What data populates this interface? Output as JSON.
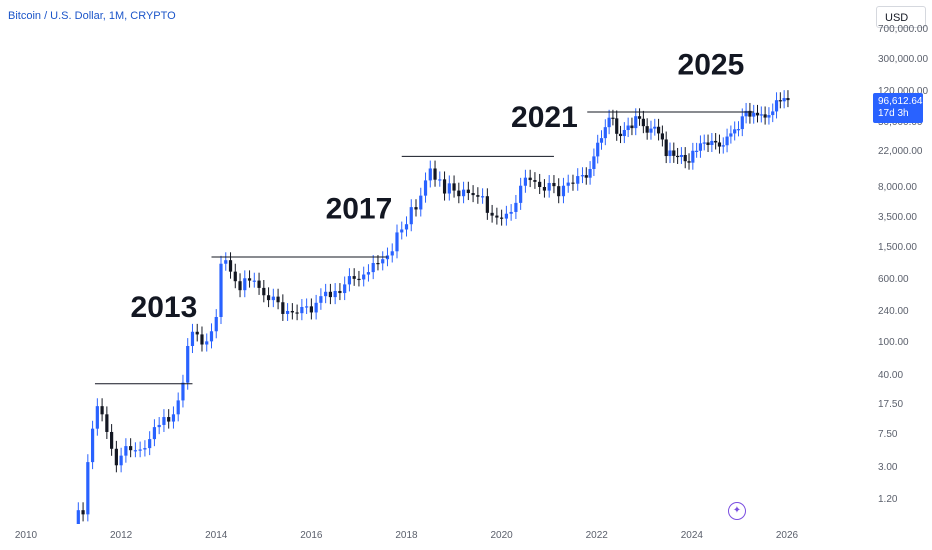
{
  "header": {
    "title": "Bitcoin / U.S. Dollar, 1M, CRYPTO"
  },
  "currency_selector": {
    "label": "USD"
  },
  "price_badge": {
    "price": "96,612.64",
    "countdown": "17d 3h"
  },
  "colors": {
    "up": "#2962ff",
    "down": "#131722",
    "accent": "#2962ff",
    "watermark": "#7b4fe0"
  },
  "icons": {
    "watermark": "tradingview-icon"
  },
  "chart_data": {
    "type": "candlestick",
    "title": "Bitcoin / U.S. Dollar, 1M, CRYPTO",
    "scale": "log",
    "y_tick_labels": [
      "700,000.00",
      "300,000.00",
      "120,000.00",
      "50,000.00",
      "22,000.00",
      "8,000.00",
      "3,500.00",
      "1,500.00",
      "600.00",
      "240.00",
      "100.00",
      "40.00",
      "17.50",
      "7.50",
      "3.00",
      "1.20"
    ],
    "y_tick_values": [
      700000,
      300000,
      120000,
      50000,
      22000,
      8000,
      3500,
      1500,
      600,
      240,
      100,
      40,
      17.5,
      7.5,
      3,
      1.2
    ],
    "x_tick_labels": [
      "2010",
      "2012",
      "2014",
      "2016",
      "2018",
      "2020",
      "2022",
      "2024",
      "2026"
    ],
    "x_range": [
      2010,
      2026
    ],
    "grid": false,
    "annotations": [
      {
        "text": "2013",
        "x": 2012.9,
        "y": 210
      },
      {
        "text": "2017",
        "x": 2017.0,
        "y": 3400
      },
      {
        "text": "2021",
        "x": 2020.9,
        "y": 45000
      },
      {
        "text": "2025",
        "x": 2024.4,
        "y": 200000
      }
    ],
    "resistance_lines": [
      {
        "x_start": 2011.45,
        "x_end": 2013.5,
        "value": 32
      },
      {
        "x_start": 2013.9,
        "x_end": 2017.6,
        "value": 1150
      },
      {
        "x_start": 2017.9,
        "x_end": 2021.1,
        "value": 19700
      },
      {
        "x_start": 2021.8,
        "x_end": 2025.3,
        "value": 69000
      }
    ],
    "monthly_closes": [
      [
        2011.0,
        0.3
      ],
      [
        2011.1,
        0.9
      ],
      [
        2011.2,
        0.8
      ],
      [
        2011.3,
        3.5
      ],
      [
        2011.4,
        9
      ],
      [
        2011.5,
        17
      ],
      [
        2011.6,
        13.5
      ],
      [
        2011.7,
        8.2
      ],
      [
        2011.8,
        5.1
      ],
      [
        2011.9,
        3.2
      ],
      [
        2012.0,
        4.2
      ],
      [
        2012.1,
        5.5
      ],
      [
        2012.2,
        4.9
      ],
      [
        2012.3,
        4.9
      ],
      [
        2012.4,
        5.0
      ],
      [
        2012.5,
        5.2
      ],
      [
        2012.6,
        6.7
      ],
      [
        2012.7,
        9.4
      ],
      [
        2012.8,
        10
      ],
      [
        2012.9,
        12.5
      ],
      [
        2013.0,
        11
      ],
      [
        2013.1,
        13.5
      ],
      [
        2013.2,
        20
      ],
      [
        2013.3,
        33
      ],
      [
        2013.4,
        93
      ],
      [
        2013.5,
        139
      ],
      [
        2013.6,
        129
      ],
      [
        2013.7,
        97
      ],
      [
        2013.8,
        106
      ],
      [
        2013.9,
        141
      ],
      [
        2014.0,
        211
      ],
      [
        2014.1,
        950
      ],
      [
        2014.2,
        1050
      ],
      [
        2014.3,
        760
      ],
      [
        2014.4,
        580
      ],
      [
        2014.5,
        450
      ],
      [
        2014.6,
        630
      ],
      [
        2014.7,
        590
      ],
      [
        2014.8,
        590
      ],
      [
        2014.9,
        480
      ],
      [
        2015.0,
        390
      ],
      [
        2015.1,
        340
      ],
      [
        2015.2,
        375
      ],
      [
        2015.3,
        320
      ],
      [
        2015.4,
        230
      ],
      [
        2015.5,
        250
      ],
      [
        2015.6,
        240
      ],
      [
        2015.7,
        235
      ],
      [
        2015.8,
        280
      ],
      [
        2015.9,
        285
      ],
      [
        2016.0,
        240
      ],
      [
        2016.1,
        315
      ],
      [
        2016.2,
        380
      ],
      [
        2016.3,
        430
      ],
      [
        2016.4,
        370
      ],
      [
        2016.5,
        440
      ],
      [
        2016.6,
        415
      ],
      [
        2016.7,
        530
      ],
      [
        2016.8,
        670
      ],
      [
        2016.9,
        620
      ],
      [
        2017.0,
        610
      ],
      [
        2017.1,
        700
      ],
      [
        2017.2,
        750
      ],
      [
        2017.3,
        970
      ],
      [
        2017.4,
        960
      ],
      [
        2017.5,
        1080
      ],
      [
        2017.6,
        1200
      ],
      [
        2017.7,
        1350
      ],
      [
        2017.8,
        2300
      ],
      [
        2017.9,
        2500
      ],
      [
        2018.0,
        2900
      ],
      [
        2018.1,
        4700
      ],
      [
        2018.2,
        4400
      ],
      [
        2018.3,
        6500
      ],
      [
        2018.4,
        10000
      ],
      [
        2018.5,
        14000
      ],
      [
        2018.6,
        10200
      ],
      [
        2018.7,
        10300
      ],
      [
        2018.8,
        6900
      ],
      [
        2018.9,
        9200
      ],
      [
        2019.0,
        7500
      ],
      [
        2019.1,
        6400
      ],
      [
        2019.2,
        7700
      ],
      [
        2019.3,
        7000
      ],
      [
        2019.4,
        6600
      ],
      [
        2019.5,
        6300
      ],
      [
        2019.6,
        6400
      ],
      [
        2019.7,
        4000
      ],
      [
        2019.8,
        3700
      ],
      [
        2019.9,
        3500
      ],
      [
        2020.0,
        3400
      ],
      [
        2020.1,
        3900
      ],
      [
        2020.2,
        4100
      ],
      [
        2020.3,
        5300
      ],
      [
        2020.4,
        8600
      ],
      [
        2020.5,
        10800
      ],
      [
        2020.6,
        10100
      ],
      [
        2020.7,
        9600
      ],
      [
        2020.8,
        8300
      ],
      [
        2020.9,
        7500
      ],
      [
        2021.0,
        9300
      ],
      [
        2021.1,
        8500
      ],
      [
        2021.2,
        6400
      ],
      [
        2021.3,
        8600
      ],
      [
        2021.4,
        9400
      ],
      [
        2021.5,
        9100
      ],
      [
        2021.6,
        11300
      ],
      [
        2021.7,
        11600
      ]
    ],
    "monthly_closes_late": [
      [
        2021.78,
        10800
      ],
      [
        2021.86,
        13800
      ],
      [
        2021.94,
        19700
      ],
      [
        2022.02,
        29000
      ],
      [
        2022.1,
        33000
      ],
      [
        2022.18,
        45000
      ],
      [
        2022.26,
        58800
      ],
      [
        2022.34,
        57700
      ],
      [
        2022.42,
        37300
      ],
      [
        2022.5,
        35000
      ],
      [
        2022.58,
        41500
      ],
      [
        2022.66,
        47100
      ],
      [
        2022.74,
        43800
      ],
      [
        2022.82,
        61300
      ],
      [
        2022.9,
        57000
      ],
      [
        2022.98,
        46300
      ],
      [
        2023.06,
        38500
      ],
      [
        2023.14,
        43200
      ],
      [
        2023.22,
        45500
      ],
      [
        2023.3,
        37700
      ],
      [
        2023.38,
        31800
      ],
      [
        2023.46,
        19900
      ],
      [
        2023.54,
        23300
      ],
      [
        2023.62,
        20000
      ],
      [
        2023.7,
        19400
      ],
      [
        2023.78,
        20500
      ],
      [
        2023.86,
        17200
      ],
      [
        2023.94,
        16500
      ],
      [
        2024.02,
        23100
      ],
      [
        2024.1,
        23100
      ],
      [
        2024.18,
        28500
      ],
      [
        2024.26,
        29200
      ],
      [
        2024.34,
        27200
      ],
      [
        2024.42,
        30500
      ],
      [
        2024.5,
        29200
      ],
      [
        2024.58,
        26000
      ],
      [
        2024.66,
        27000
      ],
      [
        2024.74,
        34500
      ],
      [
        2024.82,
        37700
      ],
      [
        2024.9,
        42300
      ],
      [
        2024.98,
        42600
      ],
      [
        2025.06,
        61100
      ],
      [
        2025.14,
        71300
      ],
      [
        2025.22,
        60600
      ],
      [
        2025.3,
        67500
      ],
      [
        2025.38,
        62700
      ],
      [
        2025.46,
        64600
      ],
      [
        2025.54,
        59000
      ],
      [
        2025.62,
        63300
      ],
      [
        2025.7,
        70200
      ],
      [
        2025.78,
        96400
      ],
      [
        2025.86,
        93400
      ],
      [
        2025.94,
        102400
      ],
      [
        2026.02,
        96612
      ]
    ]
  }
}
